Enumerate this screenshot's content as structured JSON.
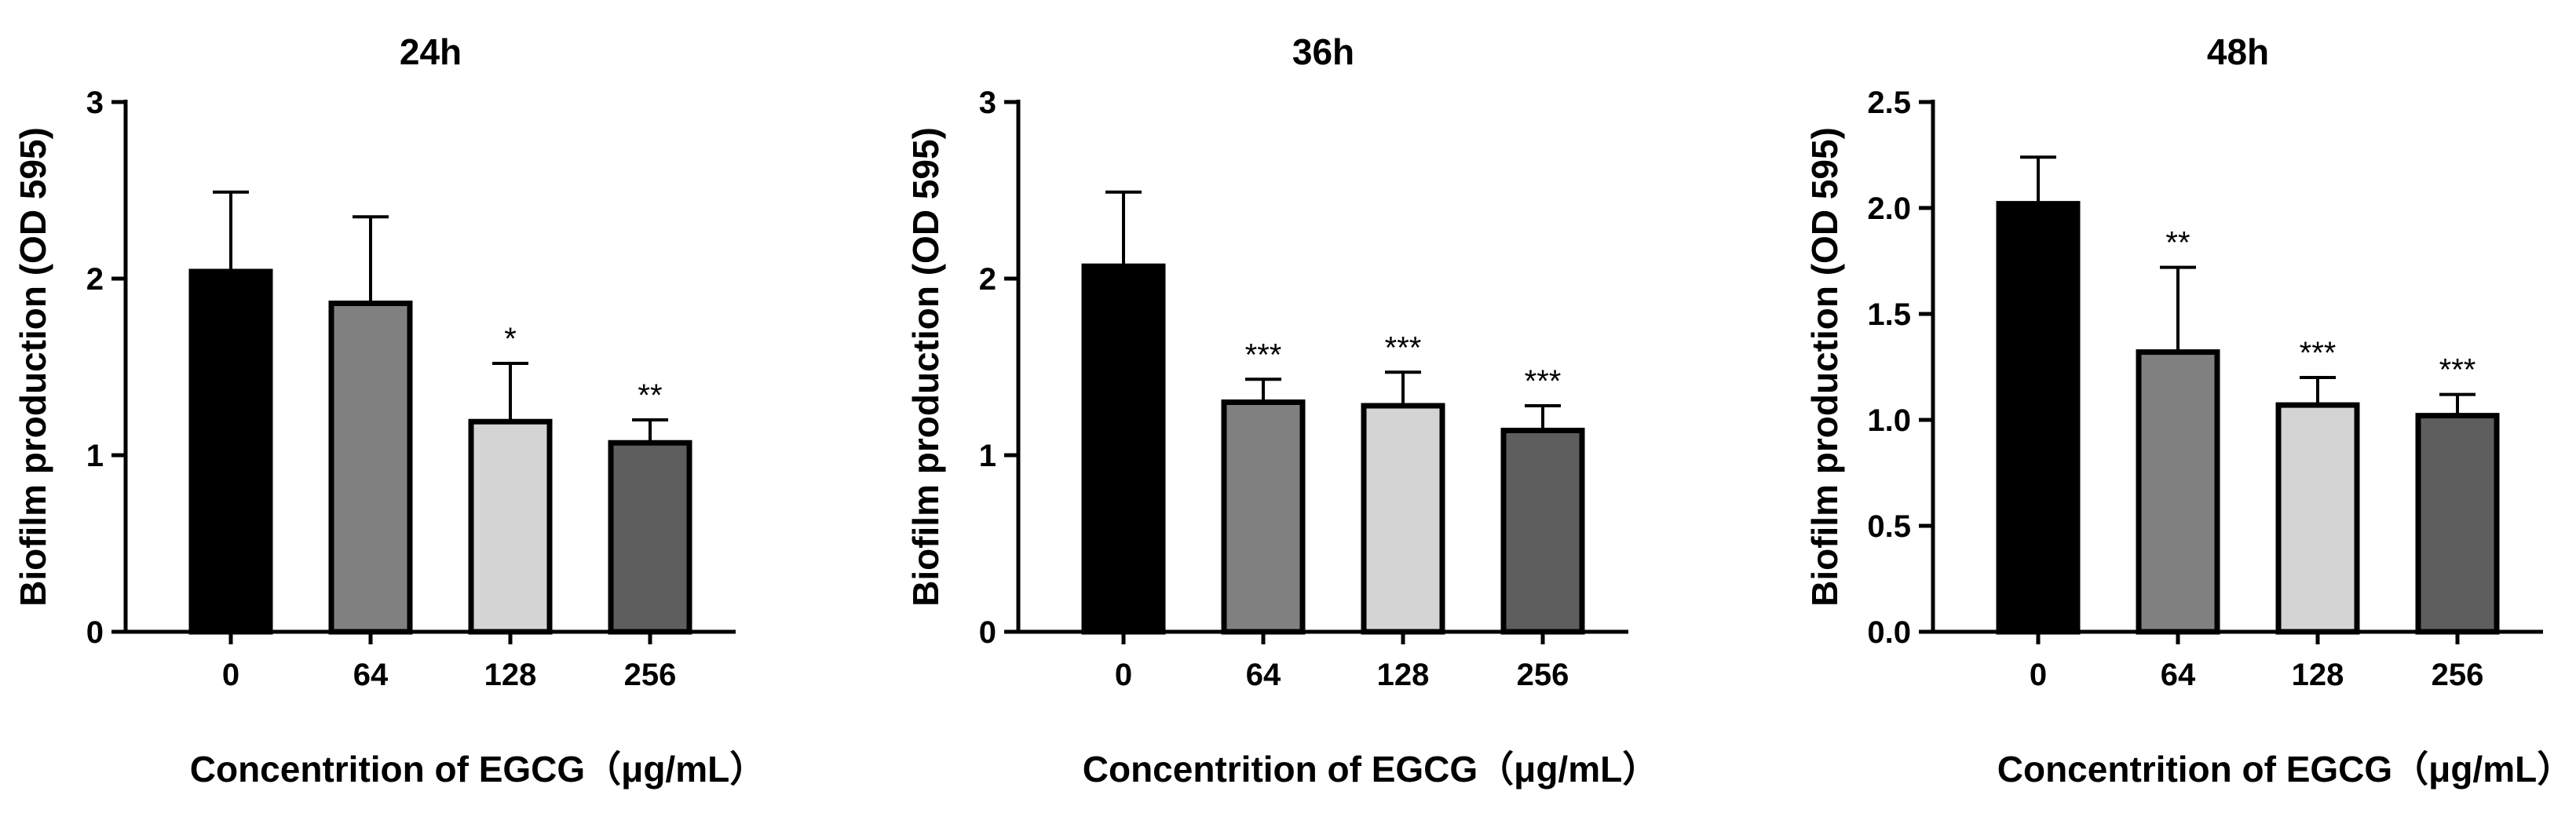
{
  "chart_data": [
    {
      "type": "bar",
      "title": "24h",
      "ylabel": "Biofilm production (OD 595)",
      "xlabel": "Concentrition of EGCG（μg/mL）",
      "categories": [
        "0",
        "64",
        "128",
        "256"
      ],
      "values": [
        2.04,
        1.86,
        1.19,
        1.07
      ],
      "error": [
        0.45,
        0.49,
        0.33,
        0.13
      ],
      "significance": [
        "",
        "",
        "*",
        "**"
      ],
      "colors": [
        "#000000",
        "#808080",
        "#d4d4d4",
        "#5e5e5e"
      ],
      "ylim": [
        0,
        3
      ],
      "yticks": [
        0,
        1,
        2,
        3
      ],
      "ytick_labels": [
        "0",
        "1",
        "2",
        "3"
      ],
      "grid": false,
      "legend": "none"
    },
    {
      "type": "bar",
      "title": "36h",
      "ylabel": "Biofilm production (OD 595)",
      "xlabel": "Concentrition of EGCG（μg/mL）",
      "categories": [
        "0",
        "64",
        "128",
        "256"
      ],
      "values": [
        2.07,
        1.3,
        1.28,
        1.14
      ],
      "error": [
        0.42,
        0.13,
        0.19,
        0.14
      ],
      "significance": [
        "",
        "***",
        "***",
        "***"
      ],
      "colors": [
        "#000000",
        "#808080",
        "#d4d4d4",
        "#5e5e5e"
      ],
      "ylim": [
        0,
        3
      ],
      "yticks": [
        0,
        1,
        2,
        3
      ],
      "ytick_labels": [
        "0",
        "1",
        "2",
        "3"
      ],
      "grid": false,
      "legend": "none"
    },
    {
      "type": "bar",
      "title": "48h",
      "ylabel": "Biofilm production (OD 595)",
      "xlabel": "Concentrition of EGCG（μg/mL）",
      "categories": [
        "0",
        "64",
        "128",
        "256"
      ],
      "values": [
        2.02,
        1.32,
        1.07,
        1.02
      ],
      "error": [
        0.22,
        0.4,
        0.13,
        0.1
      ],
      "significance": [
        "",
        "**",
        "***",
        "***"
      ],
      "colors": [
        "#000000",
        "#808080",
        "#d4d4d4",
        "#5e5e5e"
      ],
      "ylim": [
        0,
        2.5
      ],
      "yticks": [
        0,
        0.5,
        1.0,
        1.5,
        2.0,
        2.5
      ],
      "ytick_labels": [
        "0.0",
        "0.5",
        "1.0",
        "1.5",
        "2.0",
        "2.5"
      ],
      "grid": false,
      "legend": "none"
    }
  ]
}
